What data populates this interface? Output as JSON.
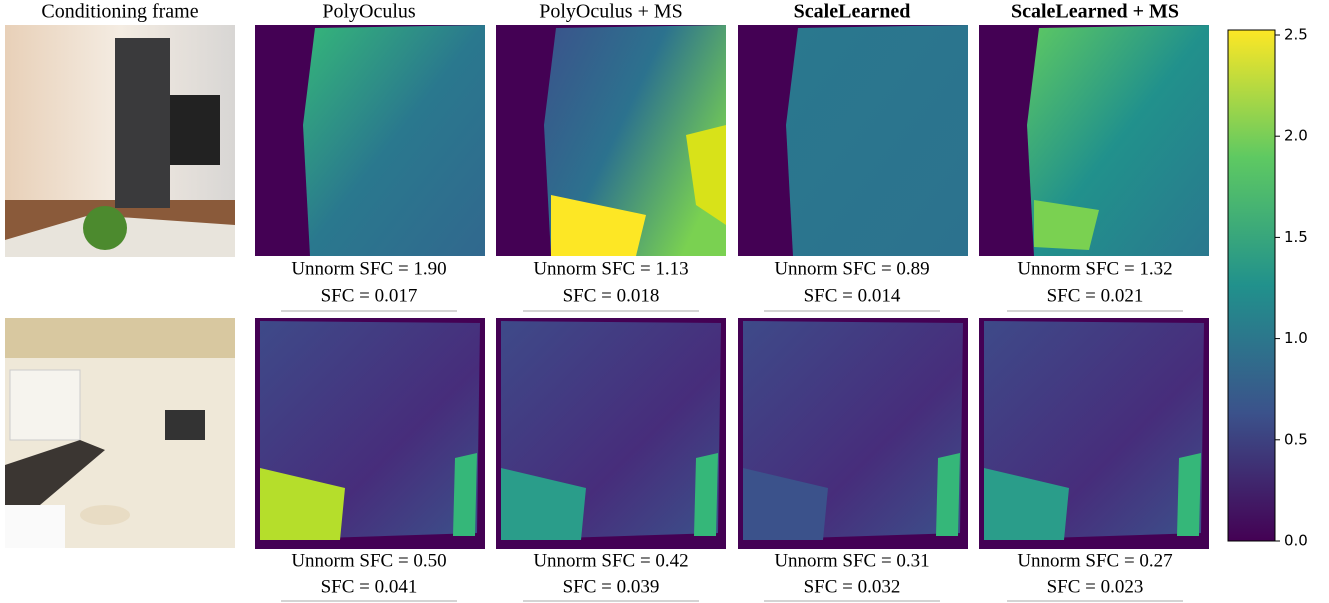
{
  "columns": [
    "Conditioning frame",
    "PolyOculus",
    "PolyOculus + MS",
    "ScaleLearned",
    "ScaleLearned + MS"
  ],
  "rows": [
    {
      "captions": [
        {
          "unnorm": "Unnorm SFC = 1.90",
          "sfc": "SFC = 0.017"
        },
        {
          "unnorm": "Unnorm SFC = 1.13",
          "sfc": "SFC = 0.018"
        },
        {
          "unnorm": "Unnorm SFC = 0.89",
          "sfc": "SFC = 0.014"
        },
        {
          "unnorm": "Unnorm SFC = 1.32",
          "sfc": "SFC = 0.021"
        }
      ]
    },
    {
      "captions": [
        {
          "unnorm": "Unnorm SFC = 0.50",
          "sfc": "SFC = 0.041"
        },
        {
          "unnorm": "Unnorm SFC = 0.42",
          "sfc": "SFC = 0.039"
        },
        {
          "unnorm": "Unnorm SFC = 0.31",
          "sfc": "SFC = 0.032"
        },
        {
          "unnorm": "Unnorm SFC = 0.27",
          "sfc": "SFC = 0.023"
        }
      ]
    }
  ],
  "colorbar": {
    "ticks": [
      {
        "value": 0,
        "label": "0.0"
      },
      {
        "value": 0.5,
        "label": "0.5"
      },
      {
        "value": 1,
        "label": "1.0"
      },
      {
        "value": 1.5,
        "label": "1.5"
      },
      {
        "value": 2,
        "label": "2.0"
      },
      {
        "value": 2.5,
        "label": "2.5"
      }
    ]
  }
}
